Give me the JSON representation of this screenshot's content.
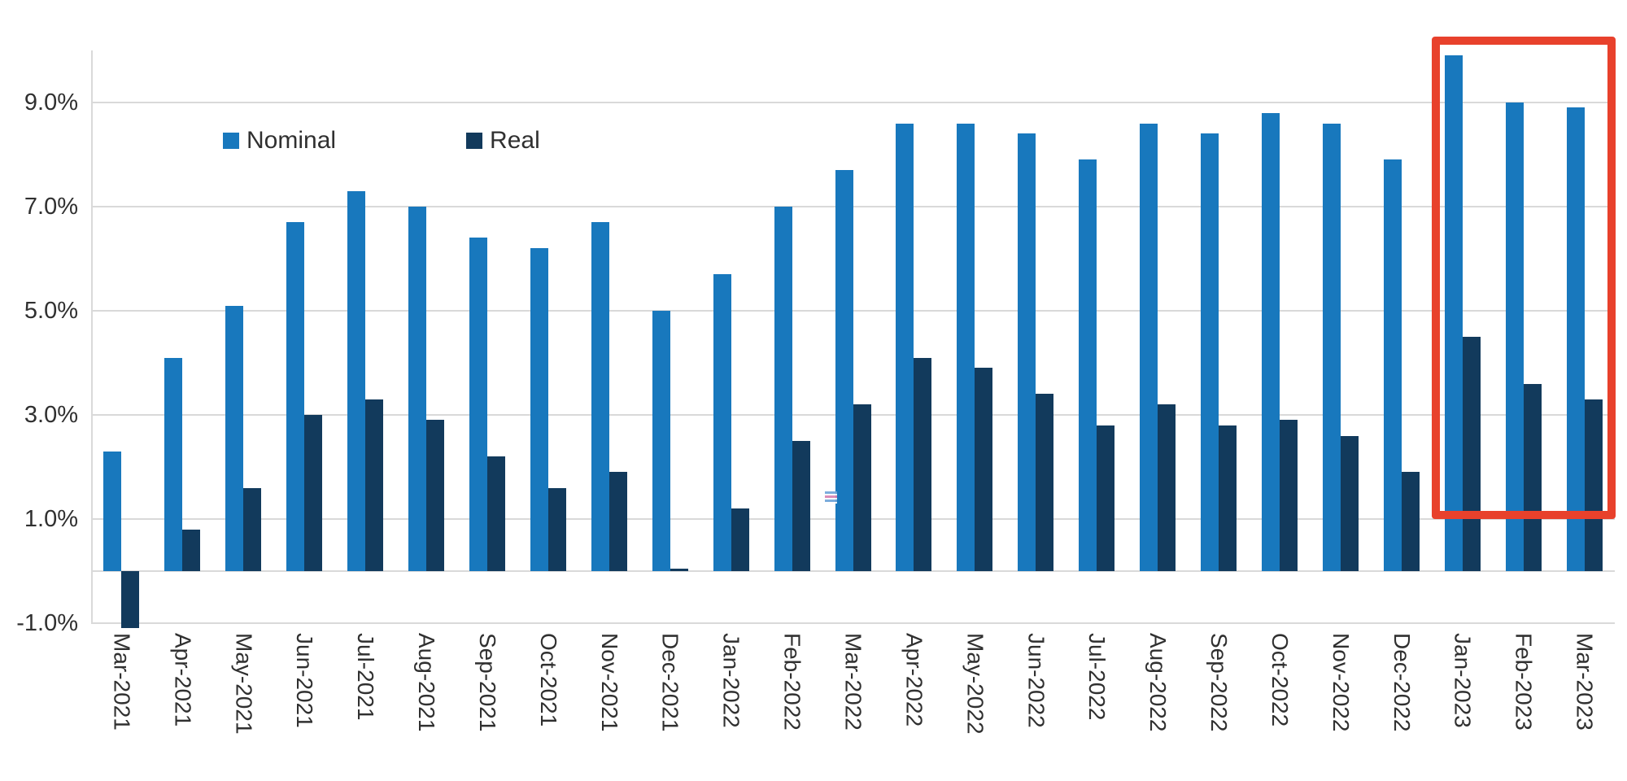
{
  "page": {
    "background": "#ffffff"
  },
  "chart_data": {
    "type": "bar",
    "title": "",
    "xlabel": "",
    "ylabel": "",
    "categories": [
      "Mar-2021",
      "Apr-2021",
      "May-2021",
      "Jun-2021",
      "Jul-2021",
      "Aug-2021",
      "Sep-2021",
      "Oct-2021",
      "Nov-2021",
      "Dec-2021",
      "Jan-2022",
      "Feb-2022",
      "Mar-2022",
      "Apr-2022",
      "May-2022",
      "Jun-2022",
      "Jul-2022",
      "Aug-2022",
      "Sep-2022",
      "Oct-2022",
      "Nov-2022",
      "Dec-2022",
      "Jan-2023",
      "Feb-2023",
      "Mar-2023"
    ],
    "series": [
      {
        "name": "Nominal",
        "color": "#1878BD",
        "values": [
          2.3,
          4.1,
          5.1,
          6.7,
          7.3,
          7.0,
          6.4,
          6.2,
          6.7,
          5.0,
          5.7,
          7.0,
          7.7,
          8.6,
          8.6,
          8.4,
          7.9,
          8.6,
          8.4,
          8.8,
          8.6,
          7.9,
          9.9,
          9.0,
          8.9
        ]
      },
      {
        "name": "Real",
        "color": "#123A5C",
        "values": [
          -1.1,
          0.8,
          1.6,
          3.0,
          3.3,
          2.9,
          2.2,
          1.6,
          1.9,
          0.05,
          1.2,
          2.5,
          3.2,
          4.1,
          3.9,
          3.4,
          2.8,
          3.2,
          2.8,
          2.9,
          2.6,
          1.9,
          4.5,
          3.6,
          3.3
        ]
      }
    ],
    "y_axis": {
      "ticks": [
        {
          "label": "-1.0%",
          "value": -1
        },
        {
          "label": "1.0%",
          "value": 1
        },
        {
          "label": "3.0%",
          "value": 3
        },
        {
          "label": "5.0%",
          "value": 5
        },
        {
          "label": "7.0%",
          "value": 7
        },
        {
          "label": "9.0%",
          "value": 9
        }
      ],
      "range": [
        -1.0,
        10.0
      ]
    },
    "grid": true,
    "legend_position": "inside-top-left",
    "highlight": {
      "from": "Jan-2023",
      "to": "Mar-2023",
      "color": "#E8412C"
    },
    "text_color": "#303030",
    "gridline_color": "#D9D9D9"
  }
}
